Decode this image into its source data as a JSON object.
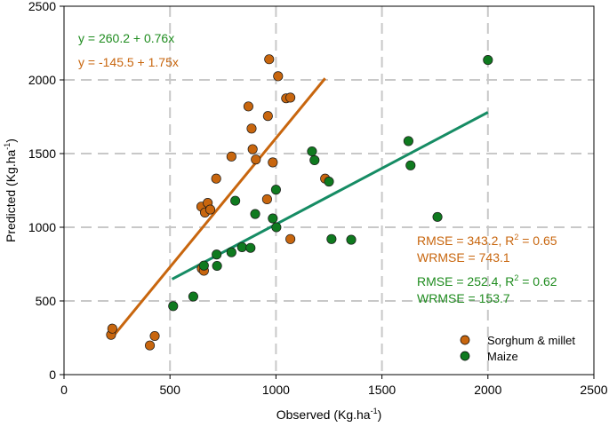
{
  "chart_data": {
    "type": "scatter",
    "xlabel": {
      "text": "Observed (Kg.ha",
      "sup": "-1",
      "close": ")"
    },
    "ylabel": {
      "text": "Predicted (Kg.ha",
      "sup": "-1",
      "close": ")"
    },
    "xlim": [
      0,
      2500
    ],
    "ylim": [
      0,
      2500
    ],
    "xticks": [
      0,
      500,
      1000,
      1500,
      2000,
      2500
    ],
    "yticks": [
      0,
      500,
      1000,
      1500,
      2000,
      2500
    ],
    "grid": true,
    "legend_position": "bottom-right",
    "colors": {
      "sorghum": "#c8660e",
      "maize": "#0f7a1f",
      "sorghum_line": "#c8660e",
      "maize_line": "#168c64",
      "maize_text": "#1f8c1f",
      "sorghum_text": "#c8660e",
      "grid": "#c8c8c8"
    },
    "series": [
      {
        "name": "Sorghum & millet",
        "color": "#c8660e",
        "points": [
          [
            222,
            270
          ],
          [
            228,
            312
          ],
          [
            405,
            198
          ],
          [
            428,
            262
          ],
          [
            650,
            720
          ],
          [
            660,
            705
          ],
          [
            648,
            1140
          ],
          [
            665,
            1100
          ],
          [
            678,
            1165
          ],
          [
            690,
            1120
          ],
          [
            718,
            1330
          ],
          [
            790,
            1480
          ],
          [
            870,
            1820
          ],
          [
            885,
            1670
          ],
          [
            890,
            1530
          ],
          [
            905,
            1460
          ],
          [
            958,
            1190
          ],
          [
            962,
            1755
          ],
          [
            968,
            2140
          ],
          [
            985,
            1440
          ],
          [
            1010,
            2025
          ],
          [
            1048,
            1875
          ],
          [
            1068,
            1880
          ],
          [
            1068,
            920
          ],
          [
            1232,
            1330
          ]
        ]
      },
      {
        "name": "Maize",
        "color": "#0f7a1f",
        "points": [
          [
            515,
            465
          ],
          [
            610,
            530
          ],
          [
            660,
            740
          ],
          [
            722,
            738
          ],
          [
            720,
            815
          ],
          [
            790,
            830
          ],
          [
            808,
            1180
          ],
          [
            840,
            865
          ],
          [
            880,
            860
          ],
          [
            902,
            1090
          ],
          [
            985,
            1060
          ],
          [
            1000,
            1255
          ],
          [
            1002,
            1000
          ],
          [
            1170,
            1515
          ],
          [
            1182,
            1455
          ],
          [
            1250,
            1310
          ],
          [
            1262,
            920
          ],
          [
            1355,
            915
          ],
          [
            1625,
            1585
          ],
          [
            1635,
            1420
          ],
          [
            1762,
            1070
          ],
          [
            2000,
            2135
          ]
        ]
      }
    ],
    "fits": [
      {
        "name": "Sorghum & millet fit",
        "intercept": -145.5,
        "slope": 1.75,
        "x_range": [
          222,
          1232
        ]
      },
      {
        "name": "Maize fit",
        "intercept": 260.2,
        "slope": 0.76,
        "x_range": [
          510,
          2000
        ]
      }
    ],
    "annotations": {
      "maize_equation": "y = 260.2 + 0.76x",
      "sorghum_equation": "y = -145.5 + 1.75x",
      "sorghum_rmse": {
        "before": "RMSE = 343.2, R",
        "sup": "2",
        "after": " = 0.65"
      },
      "sorghum_wrmse": "WRMSE = 743.1",
      "maize_rmse": {
        "before": "RMSE = 252.4, R",
        "sup": "2",
        "after": " = 0.62"
      },
      "maize_wrmse": "WRMSE = 153.7"
    },
    "legend": [
      "Sorghum & millet",
      "Maize"
    ]
  }
}
